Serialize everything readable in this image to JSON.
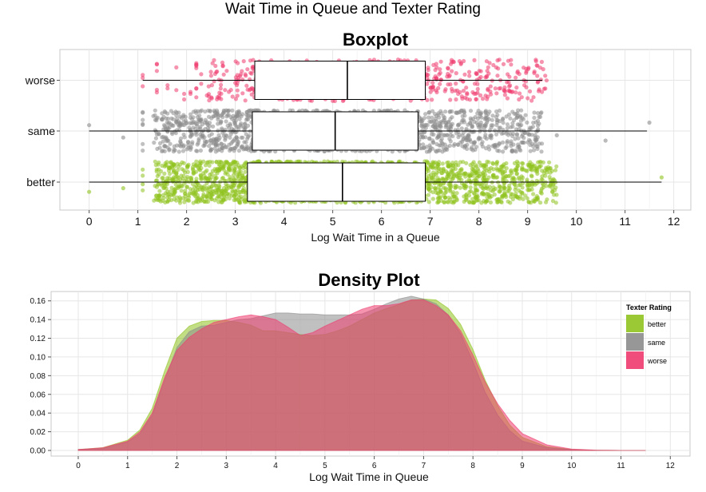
{
  "figure": {
    "title": "Wait Time in Queue and Texter Rating"
  },
  "colors": {
    "better": "#8fc31f",
    "same": "#8c8c8c",
    "worse": "#ee3a6e",
    "grid": "#e6e6e6",
    "panel_border": "#c8c8c8"
  },
  "chart_data": [
    {
      "type": "box",
      "title": "Boxplot",
      "xlabel": "Log Wait Time in a Queue",
      "ylabel": "",
      "xlim": [
        -0.6,
        12.35
      ],
      "x_ticks": [
        0,
        1,
        2,
        3,
        4,
        5,
        6,
        7,
        8,
        9,
        10,
        11,
        12
      ],
      "orientation": "horizontal",
      "grid": true,
      "categories": [
        "worse",
        "same",
        "better"
      ],
      "series": [
        {
          "name": "worse",
          "whisker_low": 1.1,
          "q1": 3.4,
          "median": 5.3,
          "q3": 6.9,
          "whisker_high": 9.3,
          "points_range": [
            1.1,
            9.4
          ],
          "outliers": []
        },
        {
          "name": "same",
          "whisker_low": 0.0,
          "q1": 3.35,
          "median": 5.05,
          "q3": 6.75,
          "whisker_high": 11.45,
          "points_range": [
            0.0,
            9.3
          ],
          "outliers": [
            0.0,
            0.7,
            9.6,
            10.6,
            11.5
          ]
        },
        {
          "name": "better",
          "whisker_low": 0.0,
          "q1": 3.25,
          "median": 5.2,
          "q3": 6.9,
          "whisker_high": 11.75,
          "points_range": [
            0.0,
            9.6
          ],
          "outliers": [
            0.0,
            0.7,
            1.1,
            9.3,
            9.55,
            11.75
          ]
        }
      ]
    },
    {
      "type": "area",
      "title": "Density Plot",
      "xlabel": "Log Wait Time in Queue",
      "ylabel": "",
      "xlim": [
        -0.55,
        12.4
      ],
      "ylim": [
        -0.006,
        0.17
      ],
      "x_ticks": [
        0,
        1,
        2,
        3,
        4,
        5,
        6,
        7,
        8,
        9,
        10,
        11,
        12
      ],
      "y_ticks": [
        0.0,
        0.02,
        0.04,
        0.06,
        0.08,
        0.1,
        0.12,
        0.14,
        0.16
      ],
      "y_tick_labels": [
        "0.00",
        "0.02",
        "0.04",
        "0.06",
        "0.08",
        "0.10",
        "0.12",
        "0.14",
        "0.16"
      ],
      "grid": true,
      "legend": {
        "title": "Texter Rating",
        "position": "top-right",
        "entries": [
          "better",
          "same",
          "worse"
        ]
      },
      "x": [
        0,
        0.5,
        1.0,
        1.25,
        1.5,
        1.75,
        2.0,
        2.25,
        2.5,
        2.75,
        3.0,
        3.25,
        3.5,
        3.75,
        4.0,
        4.25,
        4.5,
        4.75,
        5.0,
        5.25,
        5.5,
        5.75,
        6.0,
        6.25,
        6.5,
        6.75,
        7.0,
        7.25,
        7.5,
        7.75,
        8.0,
        8.25,
        8.5,
        8.75,
        9.0,
        9.5,
        10.0,
        10.5,
        11.0,
        11.5
      ],
      "series": [
        {
          "name": "better",
          "values": [
            0.001,
            0.003,
            0.011,
            0.022,
            0.045,
            0.085,
            0.12,
            0.133,
            0.138,
            0.139,
            0.139,
            0.137,
            0.134,
            0.128,
            0.128,
            0.126,
            0.124,
            0.123,
            0.124,
            0.128,
            0.133,
            0.14,
            0.147,
            0.152,
            0.156,
            0.161,
            0.162,
            0.161,
            0.152,
            0.135,
            0.108,
            0.075,
            0.048,
            0.027,
            0.014,
            0.004,
            0.001,
            0.0002,
            0.0,
            0.0
          ]
        },
        {
          "name": "same",
          "values": [
            0.001,
            0.002,
            0.009,
            0.018,
            0.038,
            0.075,
            0.11,
            0.127,
            0.133,
            0.134,
            0.137,
            0.14,
            0.141,
            0.144,
            0.147,
            0.147,
            0.146,
            0.146,
            0.145,
            0.145,
            0.145,
            0.146,
            0.151,
            0.157,
            0.162,
            0.165,
            0.162,
            0.157,
            0.145,
            0.125,
            0.095,
            0.062,
            0.038,
            0.021,
            0.01,
            0.003,
            0.0008,
            0.0002,
            0.0,
            0.0
          ]
        },
        {
          "name": "worse",
          "values": [
            0.001,
            0.003,
            0.01,
            0.02,
            0.04,
            0.078,
            0.107,
            0.121,
            0.13,
            0.137,
            0.14,
            0.143,
            0.145,
            0.143,
            0.14,
            0.132,
            0.123,
            0.126,
            0.133,
            0.139,
            0.145,
            0.151,
            0.155,
            0.155,
            0.157,
            0.161,
            0.161,
            0.155,
            0.145,
            0.128,
            0.102,
            0.073,
            0.05,
            0.032,
            0.018,
            0.006,
            0.0015,
            0.0003,
            0.0,
            0.0
          ]
        }
      ]
    }
  ]
}
